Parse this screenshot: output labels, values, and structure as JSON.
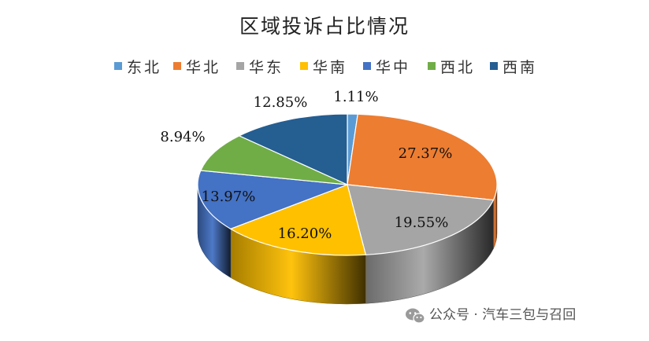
{
  "chart_data": {
    "type": "pie",
    "title": "区域投诉占比情况",
    "legend_position": "top",
    "categories": [
      "东北",
      "华北",
      "华东",
      "华南",
      "华中",
      "西北",
      "西南"
    ],
    "values": [
      1.11,
      27.37,
      19.55,
      16.2,
      13.97,
      8.94,
      12.85
    ],
    "value_labels": [
      "1.11%",
      "27.37%",
      "19.55%",
      "16.20%",
      "13.97%",
      "8.94%",
      "12.85%"
    ],
    "colors": [
      "#5B9BD5",
      "#ED7D31",
      "#A5A5A5",
      "#FFC000",
      "#4472C4",
      "#70AD47",
      "#255E91"
    ],
    "style": "3d"
  },
  "watermark": {
    "icon": "wechat-icon",
    "text": "公众号 · 汽车三包与召回"
  }
}
